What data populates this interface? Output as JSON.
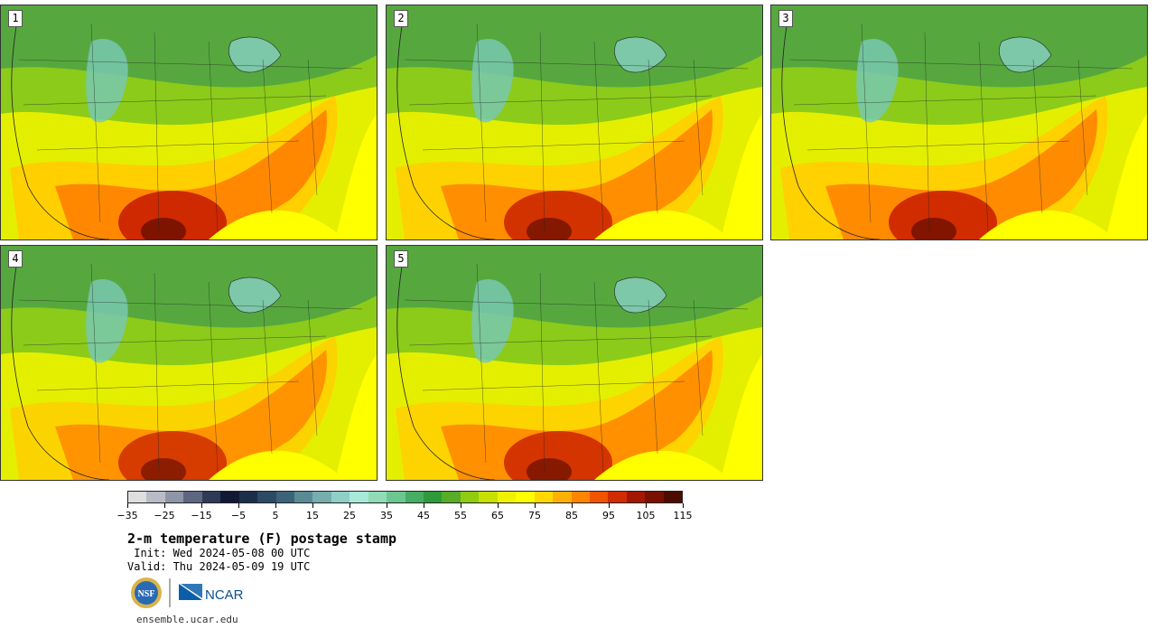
{
  "panels": [
    {
      "label": "1",
      "heat": 1.0
    },
    {
      "label": "2",
      "heat": 0.92
    },
    {
      "label": "3",
      "heat": 0.97
    },
    {
      "label": "4",
      "heat": 0.85
    },
    {
      "label": "5",
      "heat": 0.9
    }
  ],
  "colorbar": {
    "colors": [
      "#dedede",
      "#b9bcc6",
      "#8e95a6",
      "#5e6780",
      "#2f3a57",
      "#101a33",
      "#1c2f4a",
      "#2b4a63",
      "#3c6478",
      "#5a8b95",
      "#76adad",
      "#8ecfc8",
      "#a7ead9",
      "#8fdcb6",
      "#6cc68f",
      "#47ad63",
      "#2e9b3b",
      "#57ad27",
      "#91cc10",
      "#c8e000",
      "#eff200",
      "#ffff00",
      "#ffd800",
      "#ffb000",
      "#ff8400",
      "#f15300",
      "#d12b00",
      "#a31700",
      "#7a1000",
      "#4d0c00"
    ],
    "tick_labels": [
      "−35",
      "−25",
      "−15",
      "−5",
      "5",
      "15",
      "25",
      "35",
      "45",
      "55",
      "65",
      "75",
      "85",
      "95",
      "105",
      "115"
    ]
  },
  "title": "2-m temperature (F) postage stamp",
  "init_label": " Init: Wed 2024-05-08 00 UTC",
  "valid_label": "Valid: Thu 2024-05-09 19 UTC",
  "logos": {
    "nsf": "NSF",
    "ncar": "NCAR"
  },
  "site": "ensemble.ucar.edu"
}
